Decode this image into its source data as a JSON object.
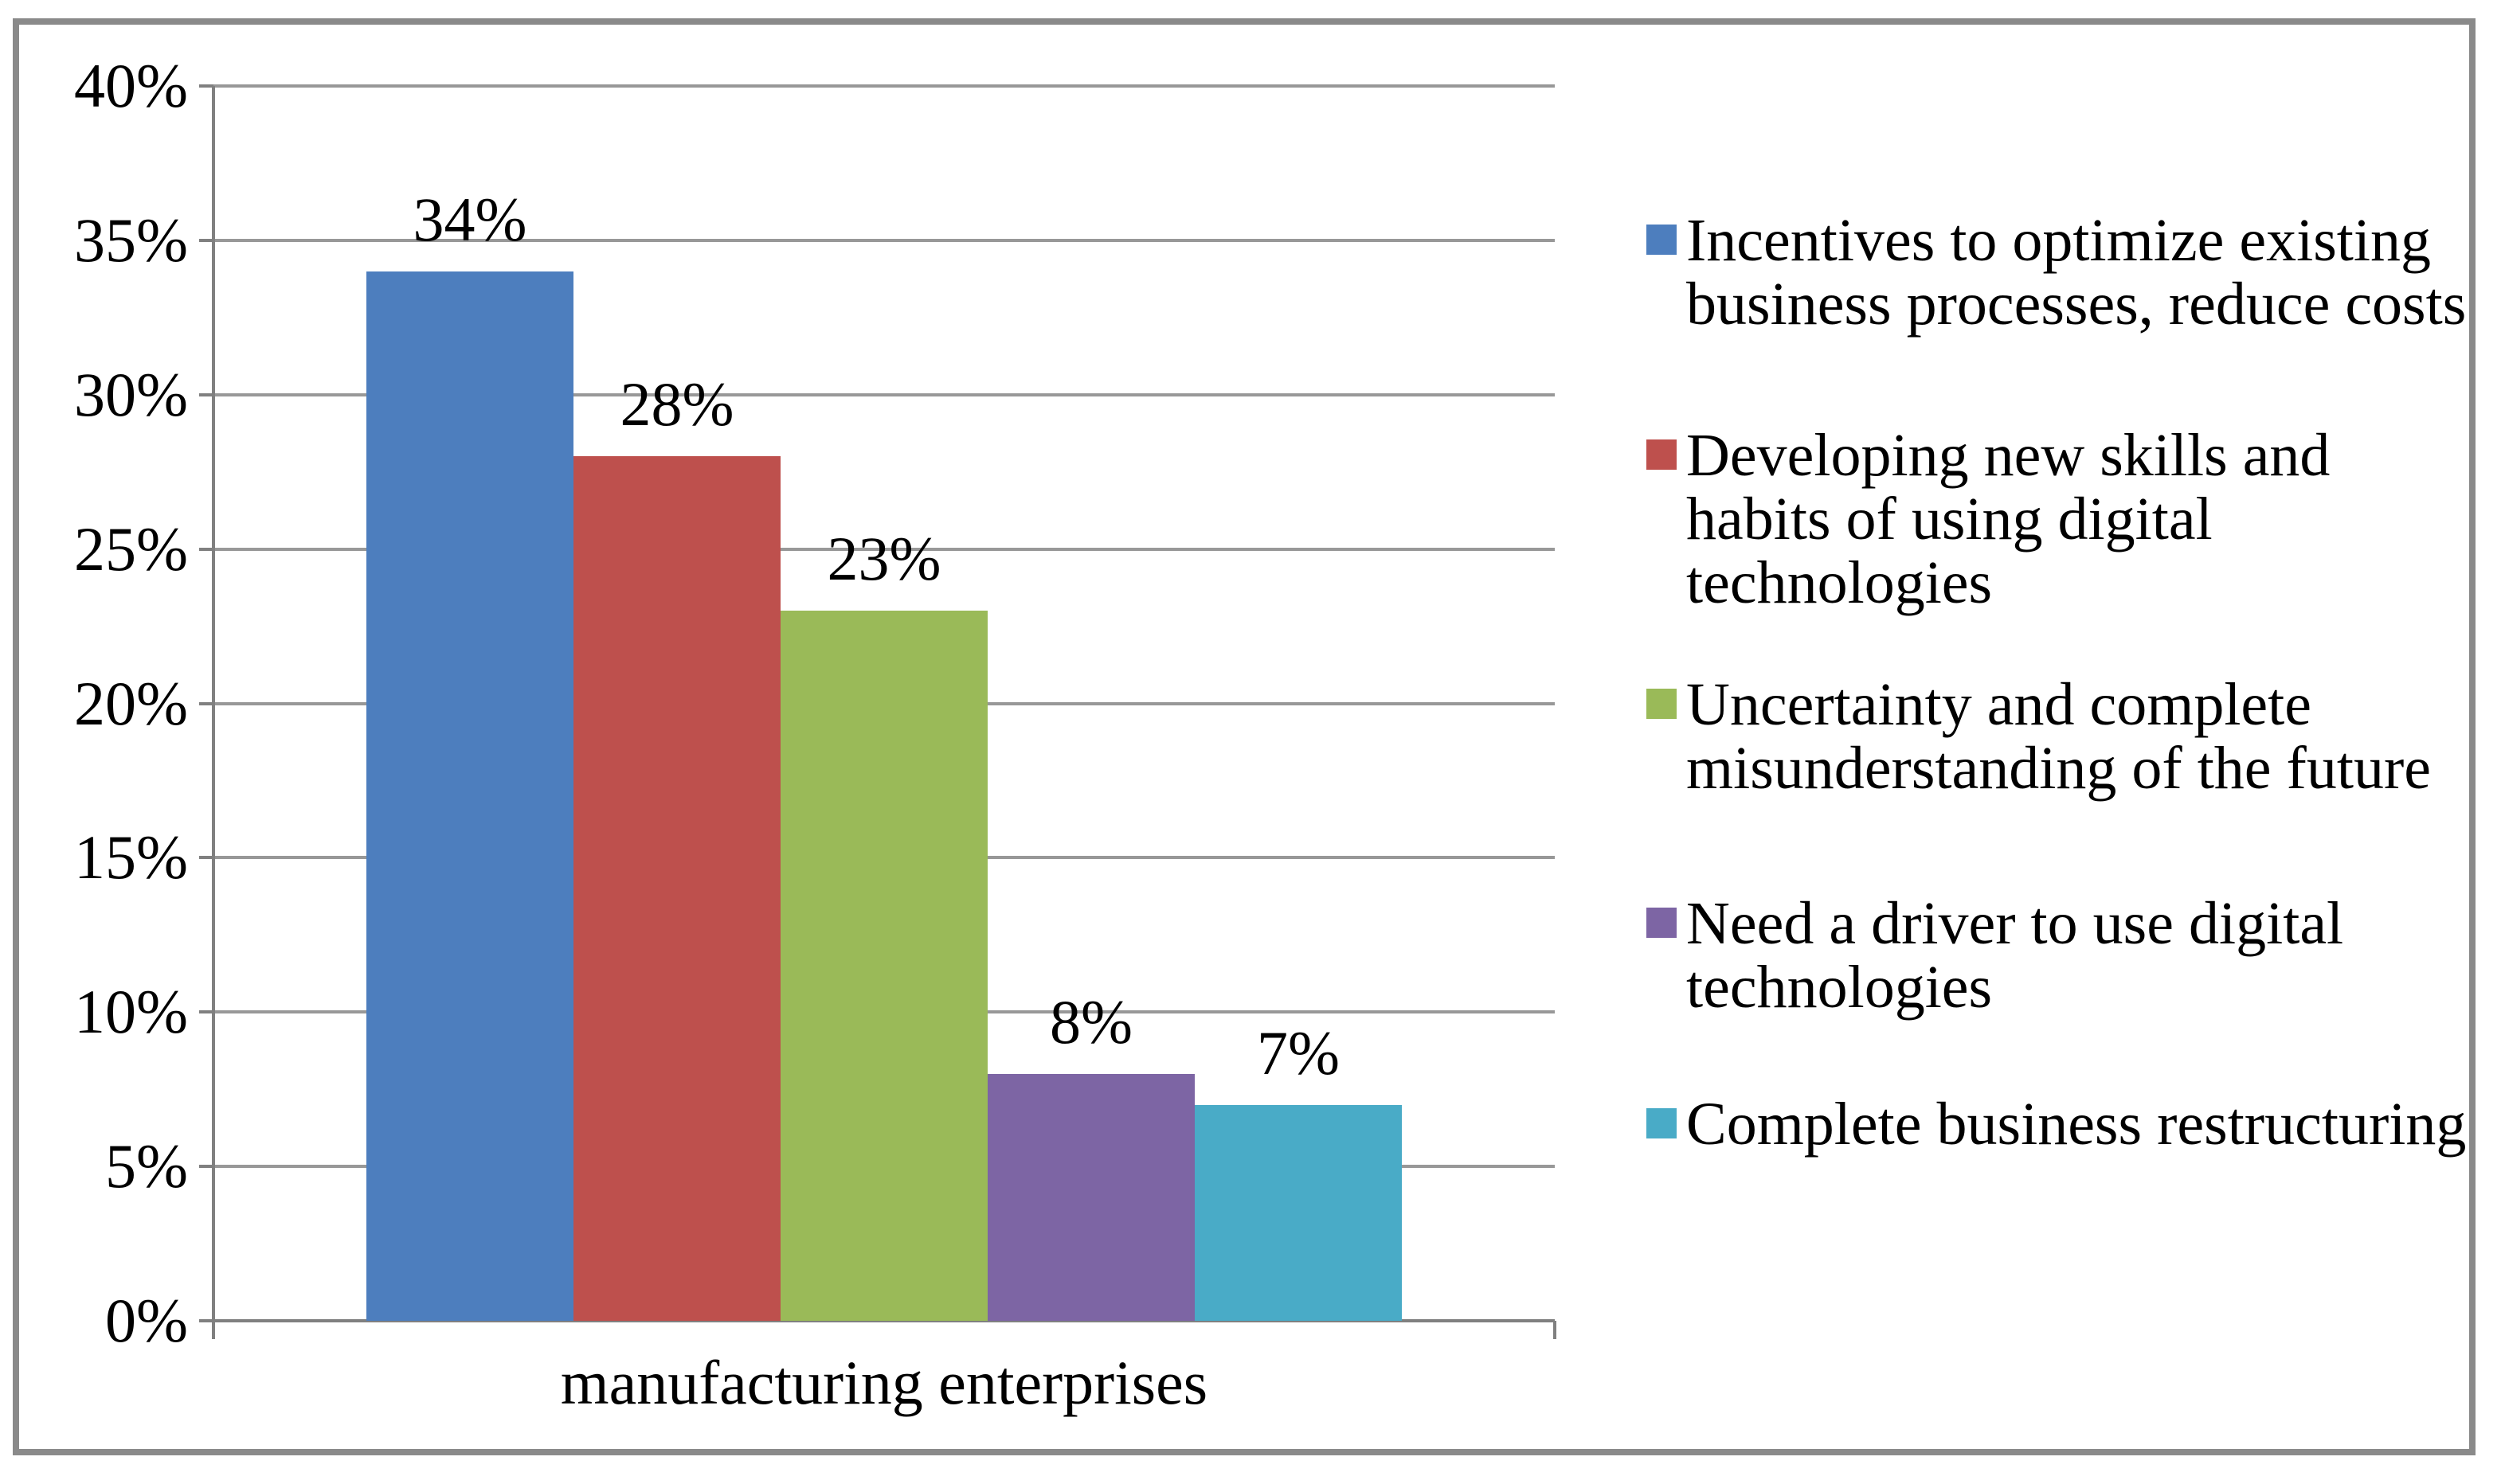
{
  "chart_data": {
    "type": "bar",
    "title": "",
    "categories": [
      "manufacturing enterprises"
    ],
    "series": [
      {
        "name": "Incentives to optimize existing business processes, reduce costs",
        "values": [
          34
        ],
        "color": "#4D7EBE",
        "value_label": "34%"
      },
      {
        "name": "Developing new skills and habits of using digital technologies",
        "values": [
          28
        ],
        "color": "#BE504D",
        "value_label": "28%"
      },
      {
        "name": "Uncertainty and complete misunderstanding of the future",
        "values": [
          23
        ],
        "color": "#9ABA58",
        "value_label": "23%"
      },
      {
        "name": "Need a driver to use digital technologies",
        "values": [
          8
        ],
        "color": "#7D65A4",
        "value_label": "8%"
      },
      {
        "name": "Complete business restructuring",
        "values": [
          7
        ],
        "color": "#49ABC7",
        "value_label": "7%"
      }
    ],
    "xlabel": "manufacturing enterprises",
    "ylabel": "",
    "ylim": [
      0,
      40
    ],
    "ytick_step": 5,
    "ytick_labels": [
      "0%",
      "5%",
      "10%",
      "15%",
      "20%",
      "25%",
      "30%",
      "35%",
      "40%"
    ],
    "grid": true,
    "legend_position": "right",
    "value_labels_shown": true
  },
  "legend": {
    "items": [
      {
        "color": "#4D7EBE",
        "lines": [
          "Incentives to optimize existing",
          "business processes, reduce costs"
        ]
      },
      {
        "color": "#BE504D",
        "lines": [
          "Developing new skills and",
          "habits of using digital",
          "technologies"
        ]
      },
      {
        "color": "#9ABA58",
        "lines": [
          "Uncertainty and complete",
          "misunderstanding of the future"
        ]
      },
      {
        "color": "#7D65A4",
        "lines": [
          "Need a driver to use digital",
          "technologies"
        ]
      },
      {
        "color": "#49ABC7",
        "lines": [
          "Complete business restructuring"
        ]
      }
    ]
  },
  "x_axis": {
    "label": "manufacturing enterprises"
  },
  "colors": {
    "gridline": "#989898",
    "axis": "#808080",
    "frame_border": "#8A8A8A",
    "background": "#FFFFFF",
    "text": "#000000"
  }
}
